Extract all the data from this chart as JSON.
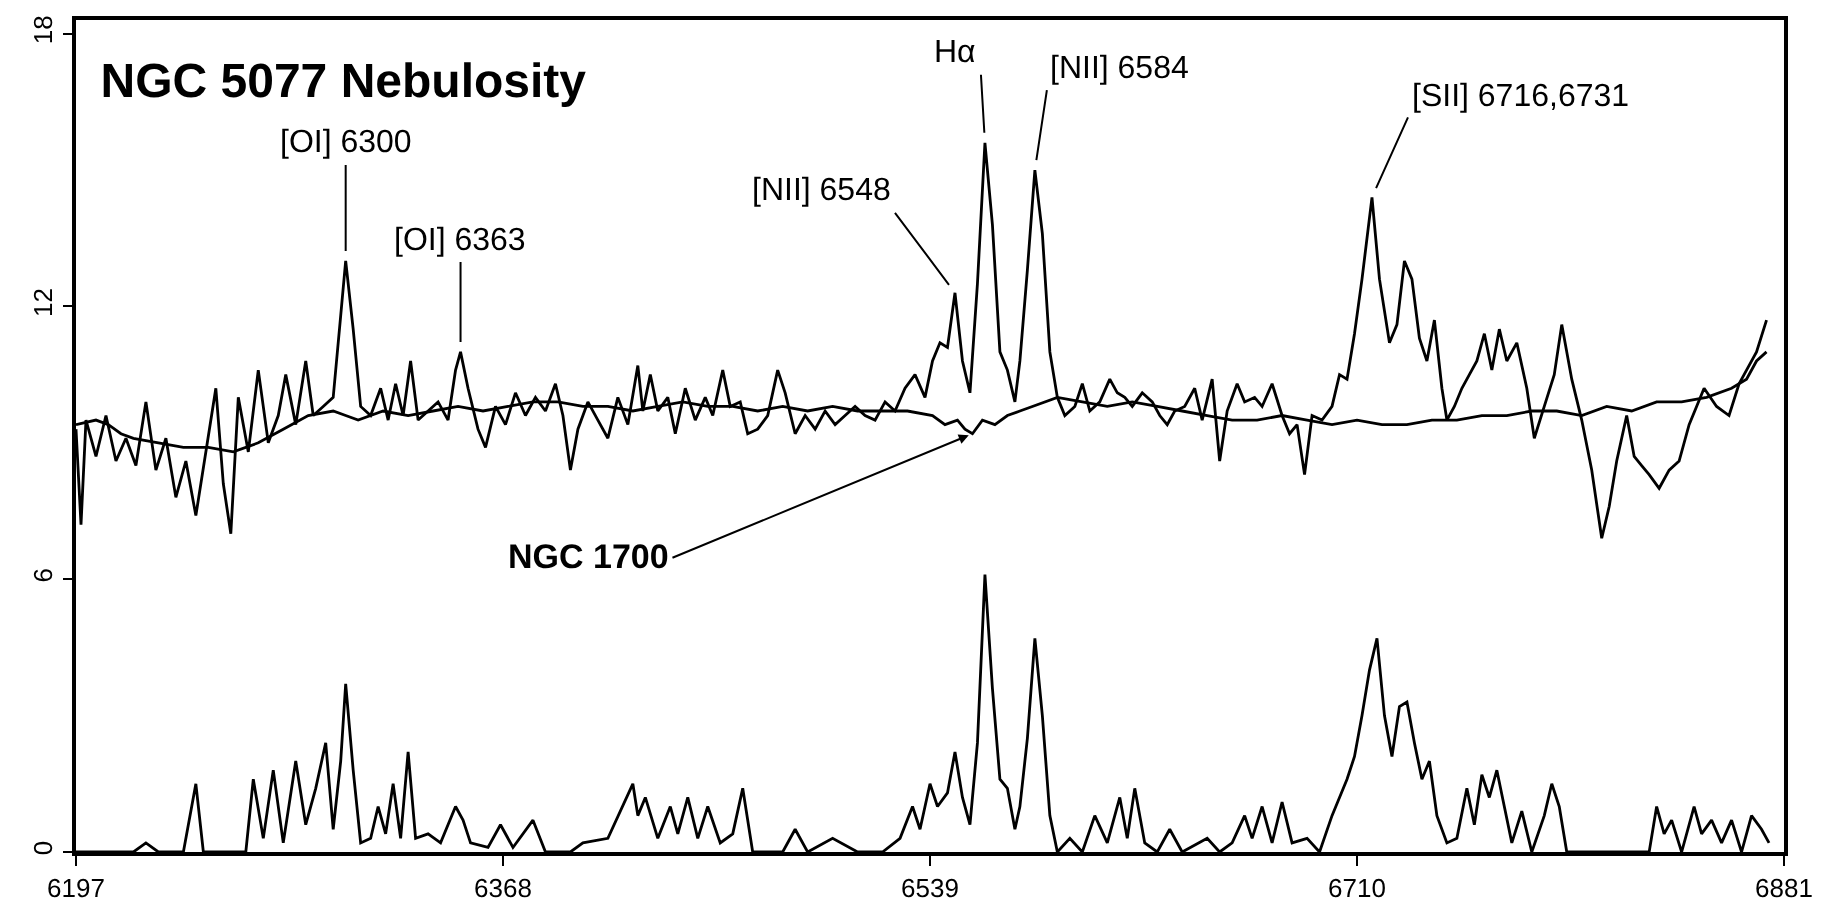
{
  "chart_data": {
    "type": "line",
    "title": "NGC 5077 Nebulosity",
    "xlim": [
      6197,
      6881
    ],
    "xticks": [
      6197,
      6368,
      6539,
      6710,
      6881
    ],
    "ylim": [
      0,
      18.3
    ],
    "yticks": [
      0,
      6,
      12,
      18
    ],
    "grid": false,
    "marker": "none",
    "line_style": "solid",
    "series": [
      {
        "color": "#000000",
        "x": [
          6197,
          6199,
          6201,
          6205,
          6209,
          6213,
          6217,
          6221,
          6225,
          6229,
          6233,
          6237,
          6241,
          6245,
          6249,
          6253,
          6256,
          6259,
          6262,
          6266,
          6270,
          6274,
          6278,
          6281,
          6285,
          6289,
          6292,
          6296,
          6300,
          6303,
          6305,
          6308,
          6311,
          6315,
          6319,
          6322,
          6325,
          6328,
          6331,
          6334,
          6338,
          6342,
          6346,
          6349,
          6351,
          6354,
          6358,
          6361,
          6365,
          6369,
          6373,
          6377,
          6381,
          6385,
          6389,
          6392,
          6395,
          6398,
          6402,
          6406,
          6410,
          6414,
          6418,
          6422,
          6424,
          6427,
          6430,
          6434,
          6437,
          6441,
          6445,
          6449,
          6452,
          6456,
          6459,
          6463,
          6466,
          6470,
          6474,
          6478,
          6481,
          6485,
          6489,
          6493,
          6497,
          6501,
          6505,
          6509,
          6513,
          6517,
          6521,
          6525,
          6529,
          6533,
          6537,
          6540,
          6543,
          6546,
          6549,
          6552,
          6555,
          6558,
          6561,
          6564,
          6567,
          6570,
          6573,
          6575,
          6578,
          6581,
          6584,
          6587,
          6590,
          6593,
          6597,
          6600,
          6603,
          6607,
          6611,
          6614,
          6617,
          6620,
          6624,
          6628,
          6631,
          6634,
          6637,
          6641,
          6645,
          6648,
          6652,
          6655,
          6658,
          6662,
          6665,
          6669,
          6672,
          6676,
          6680,
          6683,
          6686,
          6689,
          6692,
          6696,
          6700,
          6703,
          6706,
          6709,
          6712,
          6716,
          6719,
          6723,
          6726,
          6729,
          6732,
          6735,
          6738,
          6741,
          6744,
          6746,
          6749,
          6752,
          6755,
          6758,
          6761,
          6764,
          6767,
          6770,
          6774,
          6778,
          6781,
          6785,
          6789,
          6792,
          6796,
          6800,
          6804,
          6808,
          6811,
          6814,
          6818,
          6821,
          6824,
          6827,
          6831,
          6835,
          6839,
          6843,
          6849,
          6854,
          6859,
          6863,
          6866,
          6870,
          6874
        ],
        "values": [
          9.3,
          7.2,
          9.5,
          8.7,
          9.6,
          8.6,
          9.1,
          8.5,
          9.9,
          8.4,
          9.1,
          7.8,
          8.6,
          7.4,
          8.8,
          10.2,
          8.1,
          7.0,
          10.0,
          8.8,
          10.6,
          9.0,
          9.6,
          10.5,
          9.4,
          10.8,
          9.6,
          9.8,
          10.0,
          11.8,
          13.0,
          11.5,
          9.8,
          9.6,
          10.2,
          9.5,
          10.3,
          9.6,
          10.8,
          9.5,
          9.7,
          9.9,
          9.5,
          10.6,
          11.0,
          10.2,
          9.3,
          8.9,
          9.8,
          9.4,
          10.1,
          9.6,
          10.0,
          9.7,
          10.3,
          9.6,
          8.4,
          9.3,
          9.9,
          9.5,
          9.1,
          10.0,
          9.4,
          10.7,
          9.7,
          10.5,
          9.7,
          10.0,
          9.2,
          10.2,
          9.5,
          10.0,
          9.6,
          10.6,
          9.8,
          9.9,
          9.2,
          9.3,
          9.6,
          10.6,
          10.1,
          9.2,
          9.6,
          9.3,
          9.7,
          9.4,
          9.6,
          9.8,
          9.6,
          9.5,
          9.9,
          9.7,
          10.2,
          10.5,
          10.0,
          10.8,
          11.2,
          11.1,
          12.3,
          10.8,
          10.1,
          12.5,
          15.6,
          13.8,
          11.0,
          10.6,
          9.9,
          10.8,
          12.8,
          15.0,
          13.6,
          11.0,
          10.0,
          9.6,
          9.8,
          10.3,
          9.7,
          9.9,
          10.4,
          10.1,
          10.0,
          9.8,
          10.1,
          9.9,
          9.6,
          9.4,
          9.7,
          9.8,
          10.2,
          9.5,
          10.4,
          8.6,
          9.7,
          10.3,
          9.9,
          10.0,
          9.8,
          10.3,
          9.6,
          9.2,
          9.4,
          8.3,
          9.6,
          9.5,
          9.8,
          10.5,
          10.4,
          11.4,
          12.6,
          14.4,
          12.6,
          11.2,
          11.6,
          13.0,
          12.6,
          11.3,
          10.8,
          11.7,
          10.2,
          9.5,
          9.8,
          10.2,
          10.5,
          10.8,
          11.4,
          10.6,
          11.5,
          10.8,
          11.2,
          10.2,
          9.1,
          9.8,
          10.5,
          11.6,
          10.4,
          9.5,
          8.4,
          6.9,
          7.6,
          8.6,
          9.6,
          8.7,
          8.5,
          8.3,
          8.0,
          8.4,
          8.6,
          9.4,
          10.2,
          9.8,
          9.6,
          10.3,
          10.6,
          11.0,
          11.7
        ]
      },
      {
        "color": "#000000",
        "x": [
          6197,
          6205,
          6210,
          6215,
          6220,
          6230,
          6240,
          6250,
          6260,
          6270,
          6280,
          6290,
          6300,
          6305,
          6310,
          6320,
          6330,
          6340,
          6350,
          6360,
          6370,
          6380,
          6390,
          6400,
          6410,
          6420,
          6430,
          6440,
          6450,
          6460,
          6470,
          6480,
          6490,
          6500,
          6510,
          6520,
          6530,
          6540,
          6545,
          6550,
          6553,
          6556,
          6560,
          6565,
          6570,
          6575,
          6580,
          6590,
          6600,
          6610,
          6620,
          6630,
          6640,
          6650,
          6660,
          6670,
          6680,
          6690,
          6700,
          6710,
          6720,
          6730,
          6740,
          6750,
          6760,
          6770,
          6780,
          6790,
          6800,
          6810,
          6820,
          6830,
          6840,
          6850,
          6860,
          6866,
          6870,
          6874
        ],
        "values": [
          9.4,
          9.5,
          9.4,
          9.2,
          9.1,
          9.0,
          8.9,
          8.9,
          8.8,
          9.0,
          9.3,
          9.6,
          9.7,
          9.6,
          9.5,
          9.7,
          9.6,
          9.7,
          9.8,
          9.7,
          9.8,
          9.9,
          9.9,
          9.8,
          9.8,
          9.7,
          9.8,
          9.9,
          9.8,
          9.8,
          9.7,
          9.8,
          9.7,
          9.8,
          9.7,
          9.7,
          9.7,
          9.6,
          9.4,
          9.5,
          9.3,
          9.2,
          9.5,
          9.4,
          9.6,
          9.7,
          9.8,
          10.0,
          9.9,
          9.8,
          9.9,
          9.8,
          9.7,
          9.6,
          9.5,
          9.5,
          9.6,
          9.5,
          9.4,
          9.5,
          9.4,
          9.4,
          9.5,
          9.5,
          9.6,
          9.6,
          9.7,
          9.7,
          9.6,
          9.8,
          9.7,
          9.9,
          9.9,
          10.0,
          10.2,
          10.4,
          10.8,
          11.0
        ]
      },
      {
        "color": "#000000",
        "x": [
          6197,
          6220,
          6225,
          6230,
          6240,
          6245,
          6248,
          6265,
          6268,
          6272,
          6276,
          6280,
          6285,
          6289,
          6293,
          6297,
          6300,
          6303,
          6305,
          6308,
          6311,
          6315,
          6318,
          6321,
          6324,
          6327,
          6330,
          6333,
          6338,
          6343,
          6349,
          6352,
          6355,
          6362,
          6367,
          6372,
          6380,
          6385,
          6395,
          6400,
          6410,
          6420,
          6422,
          6425,
          6430,
          6435,
          6438,
          6442,
          6446,
          6450,
          6455,
          6460,
          6464,
          6468,
          6480,
          6485,
          6490,
          6500,
          6510,
          6520,
          6527,
          6532,
          6535,
          6539,
          6542,
          6546,
          6549,
          6552,
          6555,
          6558,
          6561,
          6564,
          6567,
          6570,
          6573,
          6575,
          6578,
          6581,
          6584,
          6587,
          6590,
          6595,
          6600,
          6605,
          6610,
          6615,
          6618,
          6621,
          6625,
          6630,
          6635,
          6640,
          6650,
          6655,
          6660,
          6665,
          6668,
          6672,
          6676,
          6680,
          6684,
          6690,
          6695,
          6700,
          6703,
          6706,
          6709,
          6712,
          6715,
          6718,
          6721,
          6724,
          6727,
          6730,
          6733,
          6736,
          6739,
          6742,
          6746,
          6750,
          6754,
          6757,
          6760,
          6763,
          6766,
          6769,
          6772,
          6776,
          6780,
          6785,
          6788,
          6791,
          6794,
          6800,
          6810,
          6820,
          6827,
          6830,
          6833,
          6836,
          6840,
          6845,
          6848,
          6852,
          6856,
          6860,
          6864,
          6868,
          6872,
          6875
        ],
        "values": [
          0,
          0,
          0.2,
          0,
          0,
          1.5,
          0,
          0,
          1.6,
          0.3,
          1.8,
          0.2,
          2.0,
          0.6,
          1.4,
          2.4,
          0.5,
          2.0,
          3.7,
          1.8,
          0.2,
          0.3,
          1.0,
          0.4,
          1.5,
          0.3,
          2.2,
          0.3,
          0.4,
          0.2,
          1.0,
          0.7,
          0.2,
          0.1,
          0.6,
          0.1,
          0.7,
          0,
          0,
          0.2,
          0.3,
          1.5,
          0.8,
          1.2,
          0.3,
          1.0,
          0.4,
          1.2,
          0.3,
          1.0,
          0.2,
          0.4,
          1.4,
          0,
          0,
          0.5,
          0,
          0.3,
          0,
          0,
          0.3,
          1.0,
          0.5,
          1.5,
          1.0,
          1.3,
          2.2,
          1.2,
          0.6,
          2.4,
          6.1,
          3.6,
          1.6,
          1.4,
          0.5,
          1.0,
          2.5,
          4.7,
          3.0,
          0.8,
          0,
          0.3,
          0,
          0.8,
          0.2,
          1.2,
          0.3,
          1.4,
          0.2,
          0,
          0.5,
          0,
          0.3,
          0,
          0.2,
          0.8,
          0.3,
          1.0,
          0.2,
          1.1,
          0.2,
          0.3,
          0,
          0.8,
          1.2,
          1.6,
          2.1,
          3.0,
          4.0,
          4.7,
          3.0,
          2.1,
          3.2,
          3.3,
          2.4,
          1.6,
          2.0,
          0.8,
          0.2,
          0.3,
          1.4,
          0.6,
          1.7,
          1.2,
          1.8,
          1.0,
          0.2,
          0.9,
          0,
          0.8,
          1.5,
          1.0,
          0,
          0,
          0,
          0,
          0,
          1.0,
          0.4,
          0.7,
          0,
          1.0,
          0.4,
          0.7,
          0.2,
          0.7,
          0,
          0.8,
          0.5,
          0.2
        ]
      }
    ],
    "annotations": [
      {
        "text": "[OI] 6300",
        "x": 6305,
        "y": 13.0
      },
      {
        "text": "[OI] 6363",
        "x": 6351,
        "y": 11.0
      },
      {
        "text": "[NII] 6548",
        "x": 6549,
        "y": 12.3
      },
      {
        "text": "Hα",
        "x": 6561,
        "y": 15.6
      },
      {
        "text": "[NII] 6584",
        "x": 6581,
        "y": 15.0
      },
      {
        "text": "[SII] 6716,6731",
        "x": 6716,
        "y": 14.4
      },
      {
        "text": "NGC 1700",
        "x": 6556,
        "y": 9.2
      }
    ]
  }
}
